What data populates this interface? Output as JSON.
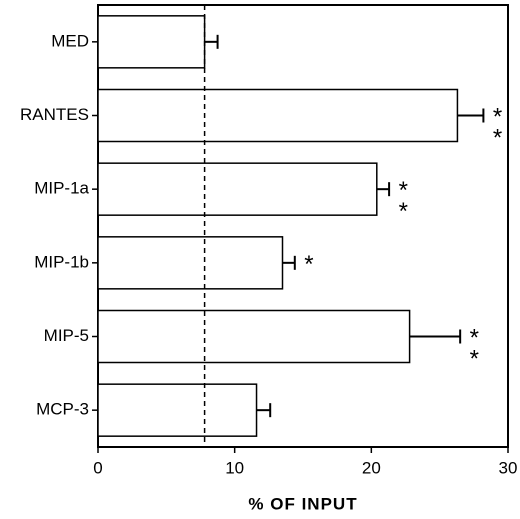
{
  "chart_data": {
    "type": "barh",
    "categories": [
      "MED",
      "RANTES",
      "MIP-1a",
      "MIP-1b",
      "MIP-5",
      "MCP-3"
    ],
    "values": [
      7.8,
      26.3,
      20.4,
      13.5,
      22.8,
      11.6
    ],
    "errors": [
      0.95,
      1.9,
      0.9,
      0.9,
      3.7,
      1.0
    ],
    "annotations": [
      null,
      "**",
      "**",
      "*",
      "**",
      null
    ],
    "color": "#ffffff",
    "xlabel": "% OF INPUT",
    "xlim": [
      0,
      30
    ],
    "xticks": [
      0,
      10,
      20,
      30
    ],
    "reference_line": true
  }
}
